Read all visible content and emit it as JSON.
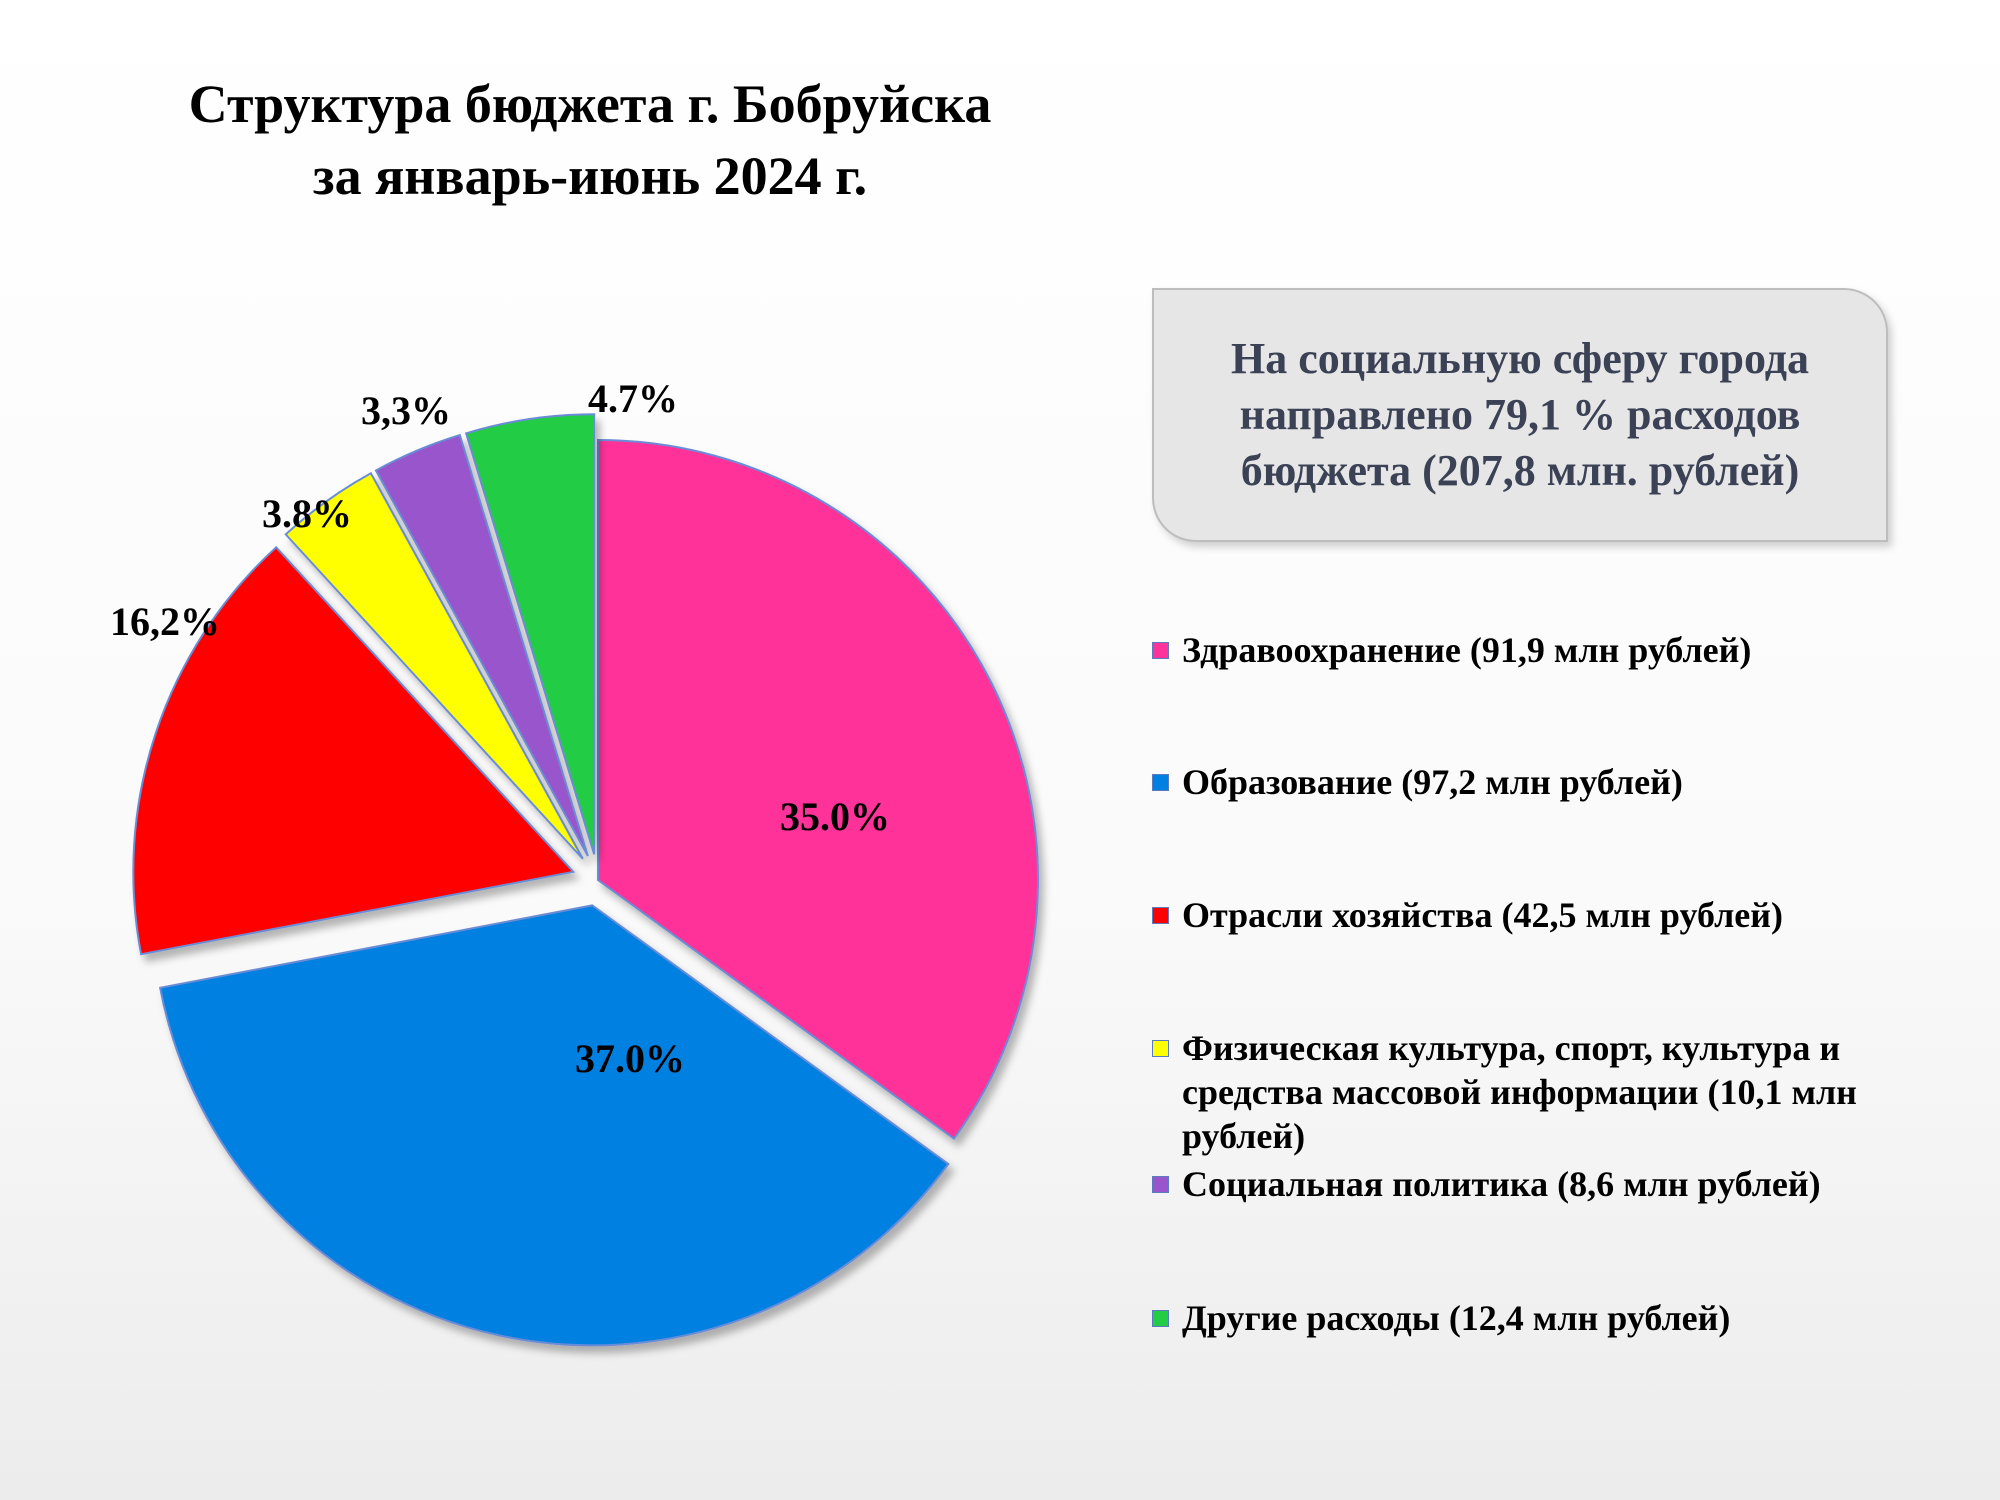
{
  "title": {
    "line1": "Структура бюджета г. Бобруйска",
    "line2": "за январь-июнь 2024 г."
  },
  "callout": {
    "text": "На социальную сферу города направлено 79,1 % расходов бюджета (207,8 млн. рублей)"
  },
  "chart_data": {
    "type": "pie",
    "title": "Структура бюджета г. Бобруйска за январь-июнь 2024 г.",
    "legend_position": "right",
    "slices": [
      {
        "label": "Здравоохранение (91,9 млн рублей)",
        "value": 35.0,
        "display": "35.0%",
        "color": "#ff3399",
        "exploded": false
      },
      {
        "label": "Образование (97,2 млн рублей)",
        "value": 37.0,
        "display": "37.0%",
        "color": "#0080e0",
        "exploded": true
      },
      {
        "label": "Отрасли хозяйства (42,5 млн рублей)",
        "value": 16.2,
        "display": "16,2%",
        "color": "#ff0000",
        "exploded": true
      },
      {
        "label": "Физическая культура, спорт, культура и средства массовой информации (10,1 млн рублей)",
        "value": 3.8,
        "display": "3.8%",
        "color": "#ffff00",
        "exploded": true
      },
      {
        "label": "Социальная политика (8,6 млн рублей)",
        "value": 3.3,
        "display": "3,3%",
        "color": "#9955cc",
        "exploded": true
      },
      {
        "label": "Другие расходы (12,4 млн рублей)",
        "value": 4.7,
        "display": "4.7%",
        "color": "#22cc44",
        "exploded": true
      }
    ]
  }
}
